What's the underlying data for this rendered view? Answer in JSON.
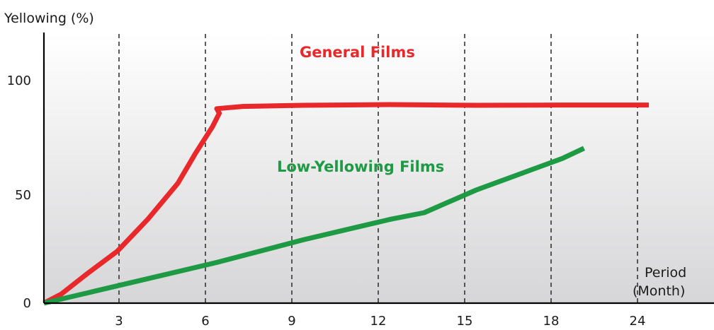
{
  "chart_data": {
    "type": "line",
    "title": "",
    "ylabel": "Yellowing (%)",
    "xlabel": "Period (Month)",
    "xlabel_lines": [
      "Period",
      "(Month)"
    ],
    "x_ticks": [
      "3",
      "6",
      "9",
      "12",
      "15",
      "18",
      "24"
    ],
    "y_ticks": [
      "0",
      "50",
      "100"
    ],
    "ylim": [
      0,
      118
    ],
    "grid": "vertical dashed lines at each x tick",
    "background": "white-to-light-gray gradient",
    "legend": "none (series labelled directly on plot)",
    "series": [
      {
        "name": "General Films",
        "color": "#e8282b",
        "x_index": [
          0,
          0.2,
          0.5,
          0.85,
          1.2,
          1.55,
          1.75,
          1.95,
          2.03,
          2.0,
          2.3,
          3.0,
          4.0,
          5.0,
          6.0,
          7.0
        ],
        "y": [
          0,
          4,
          13,
          23,
          37,
          53,
          66,
          78,
          84,
          86,
          87,
          87.5,
          87.8,
          87.5,
          87.6,
          87.6
        ]
      },
      {
        "name": "Low-Yellowing Films",
        "color": "#1e9a44",
        "x_index": [
          0,
          1.0,
          2.0,
          3.0,
          4.0,
          4.4,
          5.0,
          6.0,
          6.25
        ],
        "y": [
          0,
          9,
          18,
          28,
          37,
          40,
          50,
          64,
          68.5
        ]
      }
    ]
  },
  "labels": {
    "general": "General Films",
    "low": "Low-Yellowing Films"
  },
  "colors": {
    "general": "#e8282b",
    "low": "#1e9a44",
    "axis": "#000000",
    "grid": "#333333"
  }
}
